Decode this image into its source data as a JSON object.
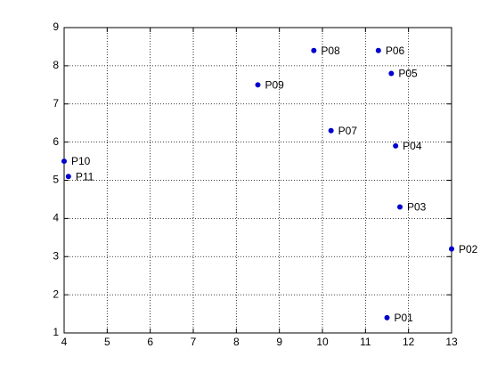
{
  "chart_data": {
    "type": "scatter",
    "x": [
      11.5,
      13,
      11.8,
      11.7,
      11.6,
      11.3,
      10.2,
      9.8,
      8.5,
      4,
      4.1
    ],
    "values": [
      1.4,
      3.2,
      4.3,
      5.9,
      7.8,
      8.4,
      6.3,
      8.4,
      7.5,
      5.5,
      5.1
    ],
    "labels": [
      "P01",
      "P02",
      "P03",
      "P04",
      "P05",
      "P06",
      "P07",
      "P08",
      "P09",
      "P10",
      "P11"
    ],
    "color": "#0000cc",
    "xlim": [
      4,
      13
    ],
    "xticks": [
      4,
      5,
      6,
      7,
      8,
      9,
      10,
      11,
      12,
      13
    ],
    "ylim": [
      1,
      9
    ],
    "yticks": [
      1,
      2,
      3,
      4,
      5,
      6,
      7,
      8,
      9
    ],
    "grid": true
  }
}
